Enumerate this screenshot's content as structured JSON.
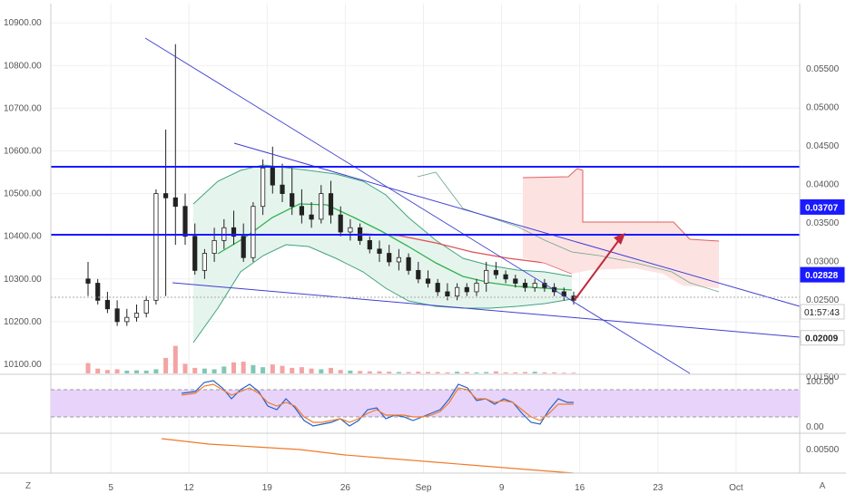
{
  "chart_data": {
    "type": "candlestick",
    "main": {
      "left_axis": {
        "ticks": [
          10900,
          10800,
          10700,
          10600,
          10500,
          10400,
          10300,
          10200,
          10100
        ],
        "labels": [
          "10900.00",
          "10800.00",
          "10700.00",
          "10600.00",
          "10500.00",
          "10400.00",
          "10300.00",
          "10200.00",
          "10100.00"
        ]
      },
      "right_axis": {
        "ticks": [
          0.055,
          0.05,
          0.045,
          0.04,
          0.035,
          0.03,
          0.025,
          0.015
        ],
        "labels": [
          "0.05500",
          "0.05000",
          "0.04500",
          "0.04000",
          "0.03500",
          "0.03000",
          "0.02500",
          "0.01500"
        ]
      },
      "price_tags": [
        {
          "label": "0.03707",
          "value": 0.03707,
          "color": "#1a1aff"
        },
        {
          "label": "0.02828",
          "value": 0.02828,
          "color": "#1a1aff"
        },
        {
          "label": "0.02009",
          "value": 0.02009,
          "color": "#ffffff"
        }
      ],
      "countdown": "01:57:43",
      "candles_ohlc": [
        [
          10300,
          10340,
          10260,
          10290
        ],
        [
          10290,
          10300,
          10240,
          10250
        ],
        [
          10250,
          10270,
          10220,
          10230
        ],
        [
          10230,
          10250,
          10190,
          10200
        ],
        [
          10200,
          10230,
          10190,
          10210
        ],
        [
          10210,
          10240,
          10200,
          10220
        ],
        [
          10220,
          10260,
          10210,
          10250
        ],
        [
          10250,
          10510,
          10240,
          10500
        ],
        [
          10500,
          10650,
          10260,
          10490
        ],
        [
          10490,
          10850,
          10380,
          10470
        ],
        [
          10470,
          10500,
          10380,
          10400
        ],
        [
          10400,
          10430,
          10310,
          10320
        ],
        [
          10320,
          10370,
          10300,
          10360
        ],
        [
          10360,
          10420,
          10340,
          10390
        ],
        [
          10390,
          10440,
          10370,
          10420
        ],
        [
          10420,
          10460,
          10380,
          10400
        ],
        [
          10400,
          10430,
          10340,
          10350
        ],
        [
          10350,
          10480,
          10340,
          10470
        ],
        [
          10470,
          10580,
          10450,
          10560
        ],
        [
          10560,
          10610,
          10500,
          10520
        ],
        [
          10520,
          10570,
          10480,
          10500
        ],
        [
          10500,
          10560,
          10450,
          10470
        ],
        [
          10470,
          10510,
          10430,
          10450
        ],
        [
          10450,
          10480,
          10420,
          10440
        ],
        [
          10440,
          10520,
          10430,
          10500
        ],
        [
          10500,
          10530,
          10430,
          10450
        ],
        [
          10450,
          10470,
          10400,
          10410
        ],
        [
          10410,
          10440,
          10390,
          10420
        ],
        [
          10420,
          10430,
          10380,
          10390
        ],
        [
          10390,
          10400,
          10360,
          10370
        ],
        [
          10370,
          10390,
          10340,
          10360
        ],
        [
          10360,
          10380,
          10330,
          10340
        ],
        [
          10340,
          10370,
          10320,
          10350
        ],
        [
          10350,
          10360,
          10310,
          10320
        ],
        [
          10320,
          10340,
          10290,
          10300
        ],
        [
          10300,
          10320,
          10280,
          10290
        ],
        [
          10290,
          10300,
          10260,
          10270
        ],
        [
          10270,
          10290,
          10250,
          10260
        ],
        [
          10260,
          10290,
          10250,
          10280
        ],
        [
          10280,
          10290,
          10260,
          10270
        ],
        [
          10270,
          10300,
          10260,
          10290
        ],
        [
          10290,
          10340,
          10270,
          10320
        ],
        [
          10320,
          10340,
          10300,
          10310
        ],
        [
          10310,
          10320,
          10290,
          10300
        ],
        [
          10300,
          10310,
          10280,
          10290
        ],
        [
          10290,
          10300,
          10270,
          10280
        ],
        [
          10280,
          10300,
          10270,
          10290
        ],
        [
          10290,
          10300,
          10270,
          10280
        ],
        [
          10280,
          10290,
          10260,
          10270
        ],
        [
          10270,
          10280,
          10250,
          10260
        ],
        [
          10260,
          10270,
          10240,
          10250
        ]
      ]
    },
    "rsi": {
      "axis_labels": [
        "100.00",
        "0.00"
      ],
      "ticks": [
        100,
        0
      ]
    },
    "indicator3": {
      "axis_labels": [
        "0.00500"
      ],
      "ticks": [
        0.005
      ]
    },
    "x_axis": {
      "labels": [
        "5",
        "12",
        "19",
        "26",
        "Sep",
        "9",
        "16",
        "23",
        "Oct"
      ]
    },
    "corner_left": "Z",
    "corner_right": "A"
  }
}
